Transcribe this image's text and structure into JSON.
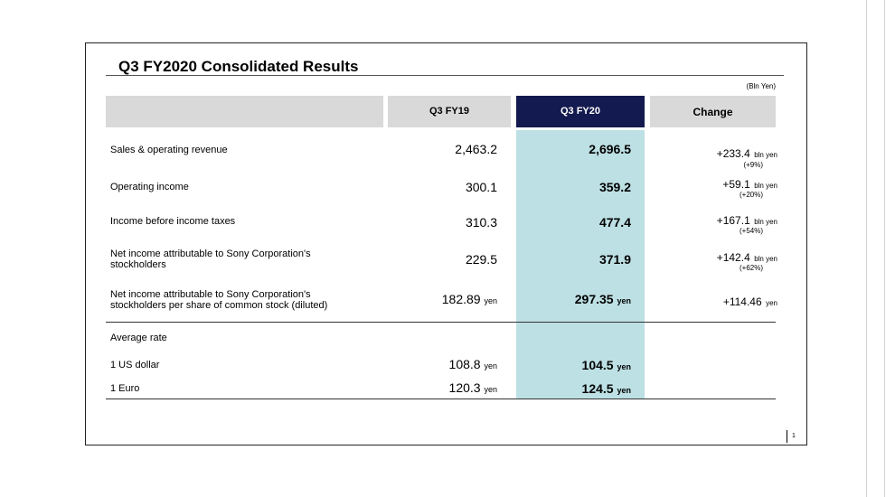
{
  "title": "Q3 FY2020  Consolidated Results",
  "unit": "(Bln Yen)",
  "columns": {
    "label": "",
    "prev": "Q3 FY19",
    "curr": "Q3 FY20",
    "change": "Change"
  },
  "rows": [
    {
      "label": "Sales & operating revenue",
      "prev": "2,463.2",
      "curr": "2,696.5",
      "change": "+233.4",
      "change_unit": "bln yen",
      "pct": "(+9%)"
    },
    {
      "label": "Operating income",
      "prev": "300.1",
      "curr": "359.2",
      "change": "+59.1",
      "change_unit": "bln yen",
      "pct": "(+20%)"
    },
    {
      "label": "Income before income taxes",
      "prev": "310.3",
      "curr": "477.4",
      "change": "+167.1",
      "change_unit": "bln yen",
      "pct": "(+54%)"
    },
    {
      "label_line1": "Net income attributable to Sony Corporation's",
      "label_line2": "stockholders",
      "prev": "229.5",
      "curr": "371.9",
      "change": "+142.4",
      "change_unit": "bln yen",
      "pct": "(+62%)"
    },
    {
      "label_line1": "Net income attributable to Sony Corporation's",
      "label_line2": "stockholders per share of common stock (diluted)",
      "prev": "182.89",
      "prev_unit": "yen",
      "curr": "297.35",
      "curr_unit": "yen",
      "change": "+114.46",
      "change_unit": "yen"
    }
  ],
  "rates": {
    "heading": "Average rate",
    "items": [
      {
        "label": "1 US dollar",
        "prev": "108.8",
        "prev_unit": "yen",
        "curr": "104.5",
        "curr_unit": "yen"
      },
      {
        "label": "1 Euro",
        "prev": "120.3",
        "prev_unit": "yen",
        "curr": "124.5",
        "curr_unit": "yen"
      }
    ]
  },
  "page_number": "1",
  "colors": {
    "header_bg": "#d9d9d9",
    "current_header_bg": "#131a4f",
    "current_column_bg": "#bde0e4"
  }
}
